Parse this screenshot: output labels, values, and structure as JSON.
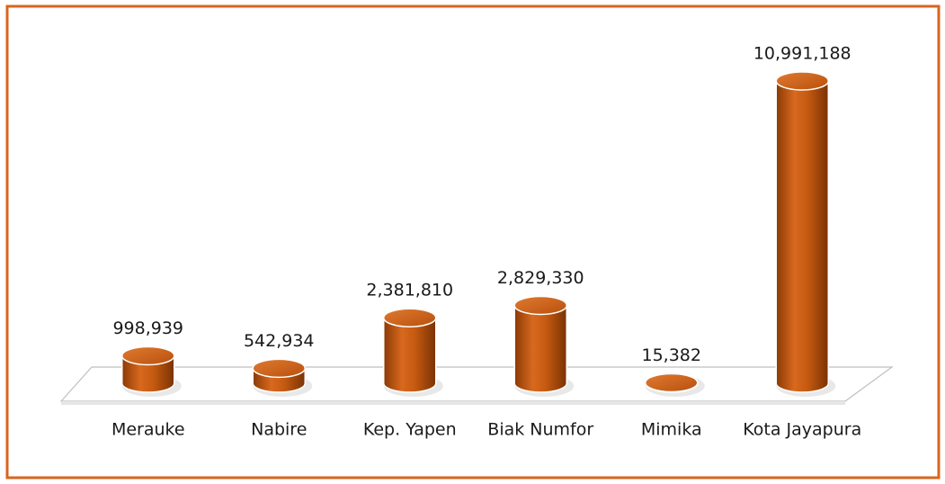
{
  "chart_data": {
    "type": "bar3d",
    "categories": [
      "Merauke",
      "Nabire",
      "Kep. Yapen",
      "Biak Numfor",
      "Mimika",
      "Kota Jayapura"
    ],
    "values": [
      998939,
      542934,
      2381810,
      2829330,
      15382,
      10991188
    ],
    "value_labels": [
      "998,939",
      "542,934",
      "2,381,810",
      "2,829,330",
      "15,382",
      "10,991,188"
    ],
    "color": "#c55a11"
  }
}
